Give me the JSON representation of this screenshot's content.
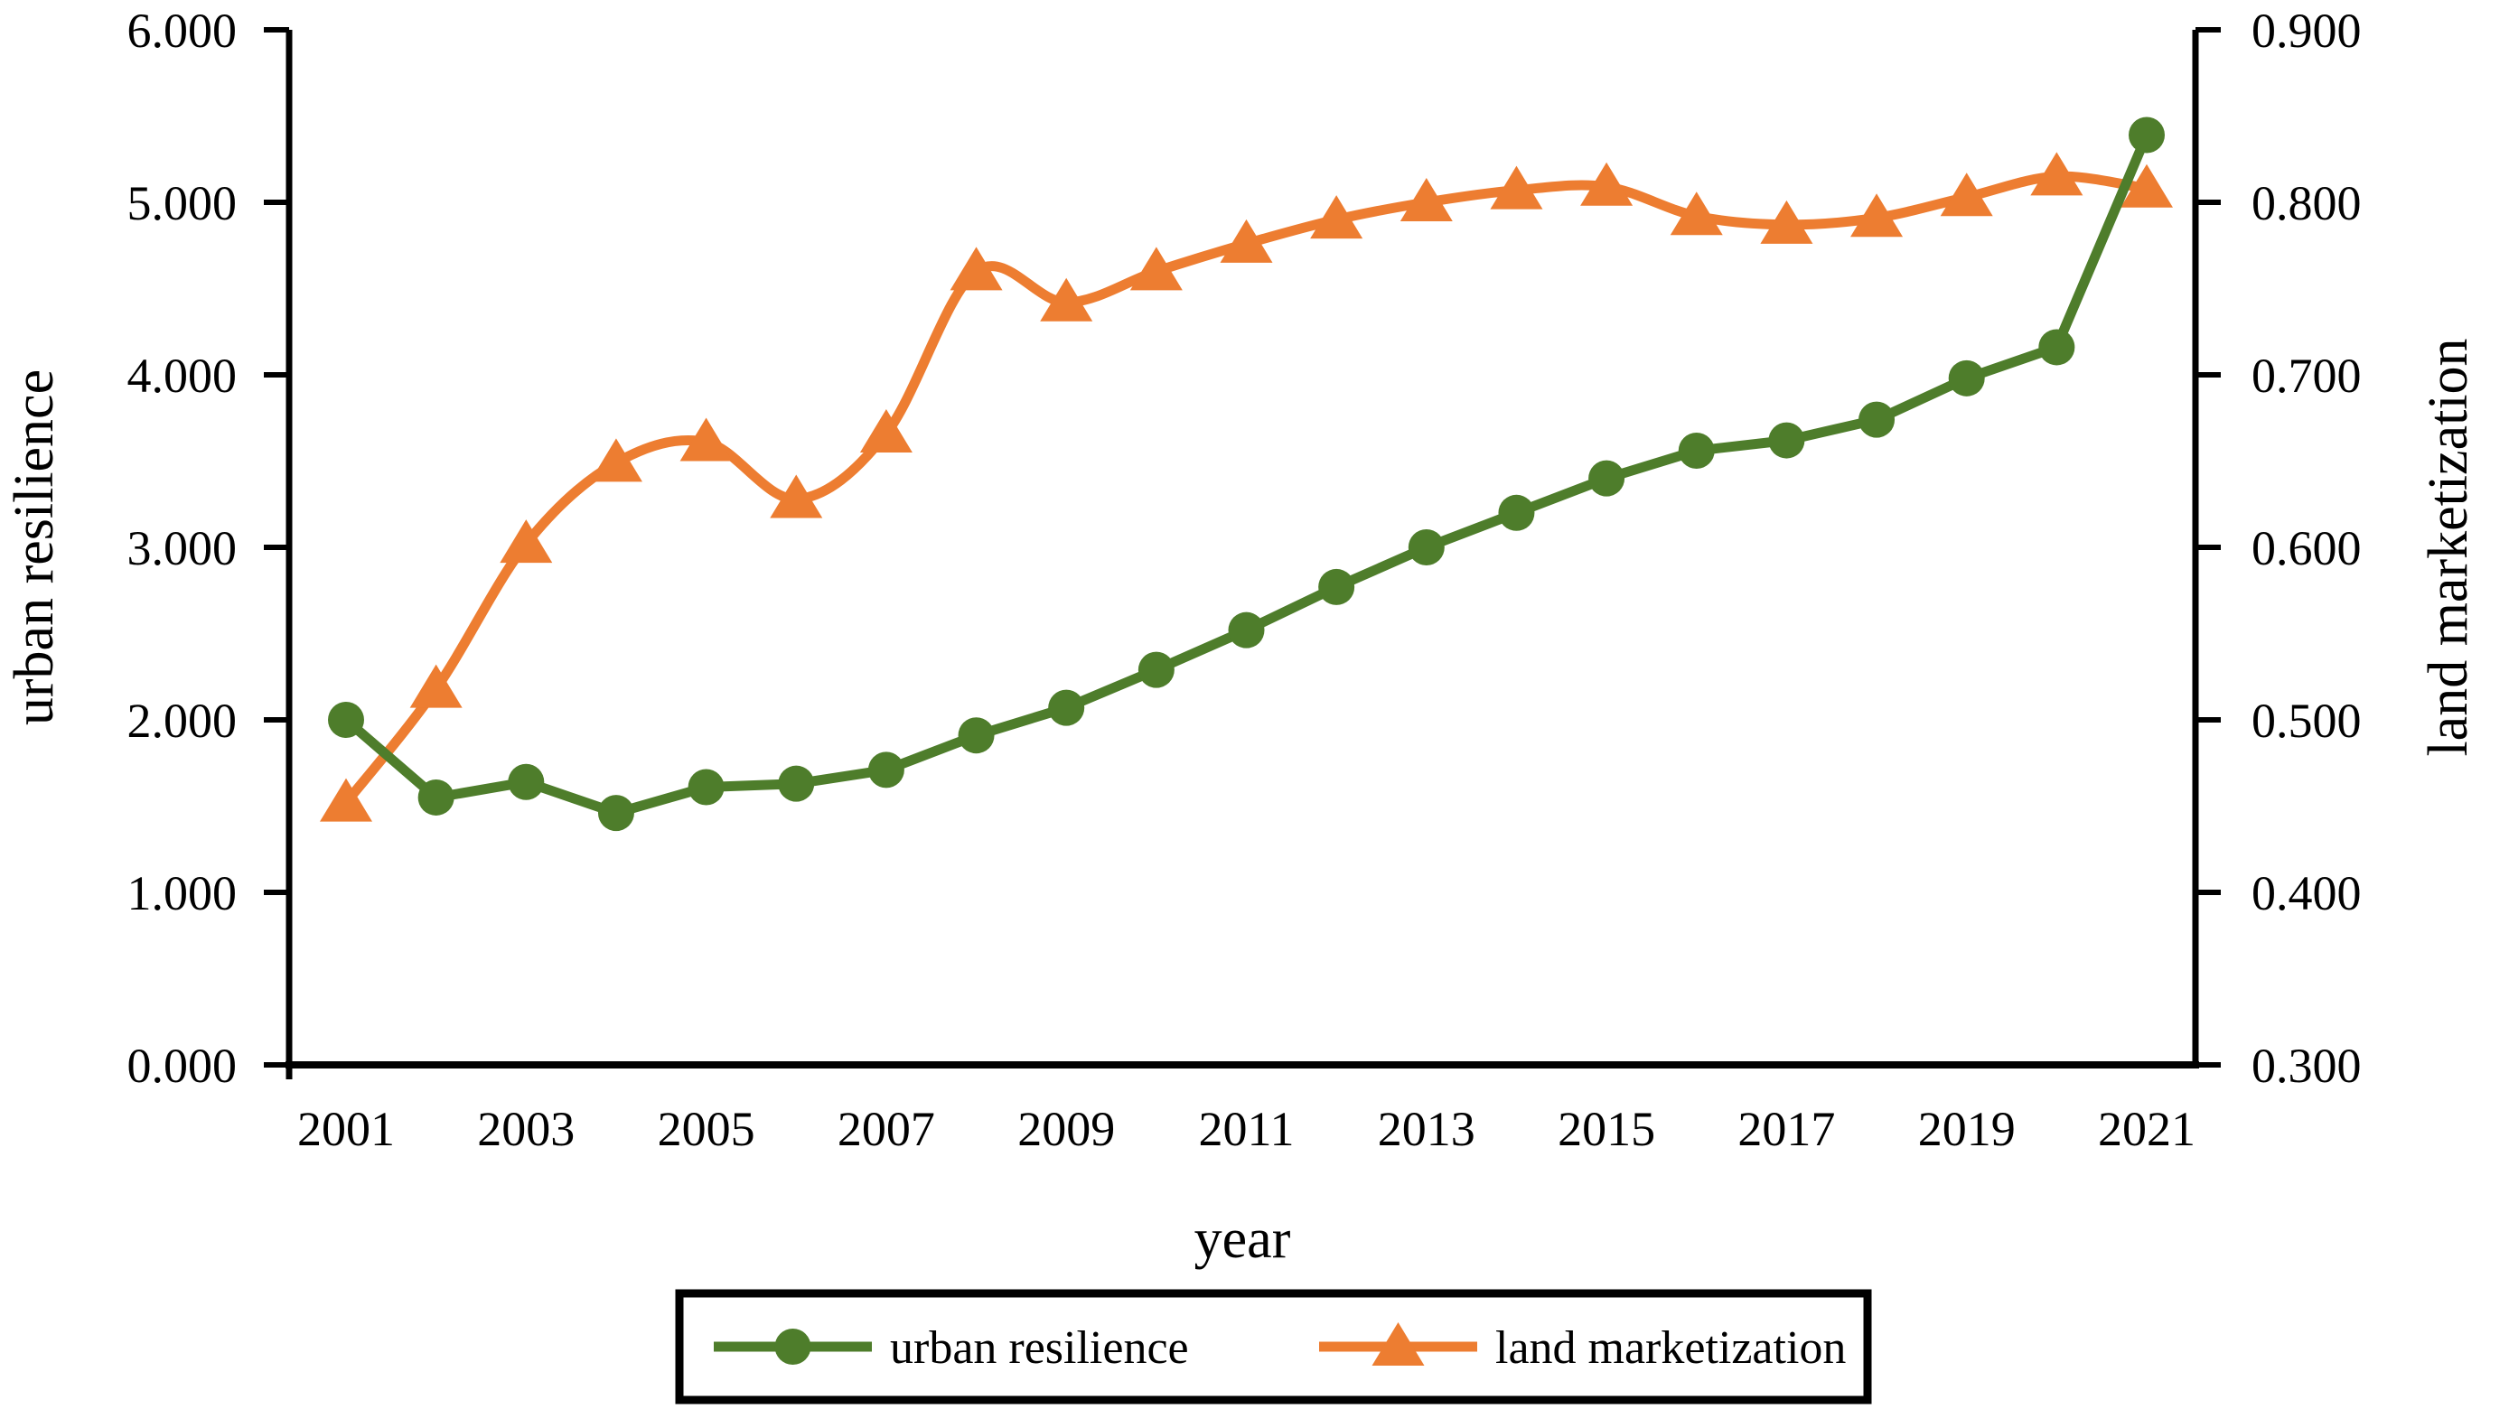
{
  "figure": {
    "left_axis": {
      "title": "urban resilience",
      "min": 0,
      "max": 6,
      "tick_labels_top_to_bottom": [
        "6.000",
        "5.000",
        "4.000",
        "3.000",
        "2.000",
        "1.000",
        "0.000"
      ]
    },
    "right_axis": {
      "title": "land marketization",
      "min": 0.3,
      "max": 0.9,
      "tick_labels_top_to_bottom": [
        "0.900",
        "0.800",
        "0.700",
        "0.600",
        "0.500",
        "0.400",
        "0.300"
      ]
    },
    "x_axis": {
      "title": "year",
      "tick_labels": [
        "2001",
        "2003",
        "2005",
        "2007",
        "2009",
        "2011",
        "2013",
        "2015",
        "2017",
        "2019",
        "2021"
      ]
    },
    "legend": [
      {
        "label": "urban resilience",
        "marker": "circle",
        "color": "#4e7d2b"
      },
      {
        "label": "land marketization",
        "marker": "triangle",
        "color": "#ed7d31"
      }
    ],
    "colors": {
      "urban_resilience": "#4e7d2b",
      "land_marketization": "#ed7d31",
      "axis": "#000000",
      "background": "#ffffff"
    }
  },
  "chart_data": {
    "type": "line",
    "x": [
      2001,
      2002,
      2003,
      2004,
      2005,
      2006,
      2007,
      2008,
      2009,
      2010,
      2011,
      2012,
      2013,
      2014,
      2015,
      2016,
      2017,
      2018,
      2019,
      2020,
      2021
    ],
    "series": [
      {
        "name": "urban resilience",
        "axis": "left",
        "color": "#4e7d2b",
        "marker": "circle",
        "smooth": false,
        "values": [
          2.0,
          1.55,
          1.64,
          1.46,
          1.61,
          1.63,
          1.71,
          1.91,
          2.07,
          2.29,
          2.52,
          2.77,
          3.0,
          3.2,
          3.4,
          3.56,
          3.62,
          3.74,
          3.98,
          4.16,
          5.39
        ]
      },
      {
        "name": "land marketization",
        "axis": "right",
        "color": "#ed7d31",
        "marker": "triangle",
        "smooth": true,
        "values": [
          0.452,
          0.518,
          0.602,
          0.649,
          0.661,
          0.628,
          0.666,
          0.76,
          0.742,
          0.76,
          0.776,
          0.79,
          0.8,
          0.807,
          0.809,
          0.792,
          0.787,
          0.791,
          0.803,
          0.815,
          0.808
        ]
      }
    ],
    "title": "",
    "xlabel": "year",
    "ylabel_left": "urban resilience",
    "ylabel_right": "land marketization",
    "ylim_left": [
      0,
      6
    ],
    "ylim_right": [
      0.3,
      0.9
    ],
    "grid": false,
    "legend_position": "bottom"
  }
}
